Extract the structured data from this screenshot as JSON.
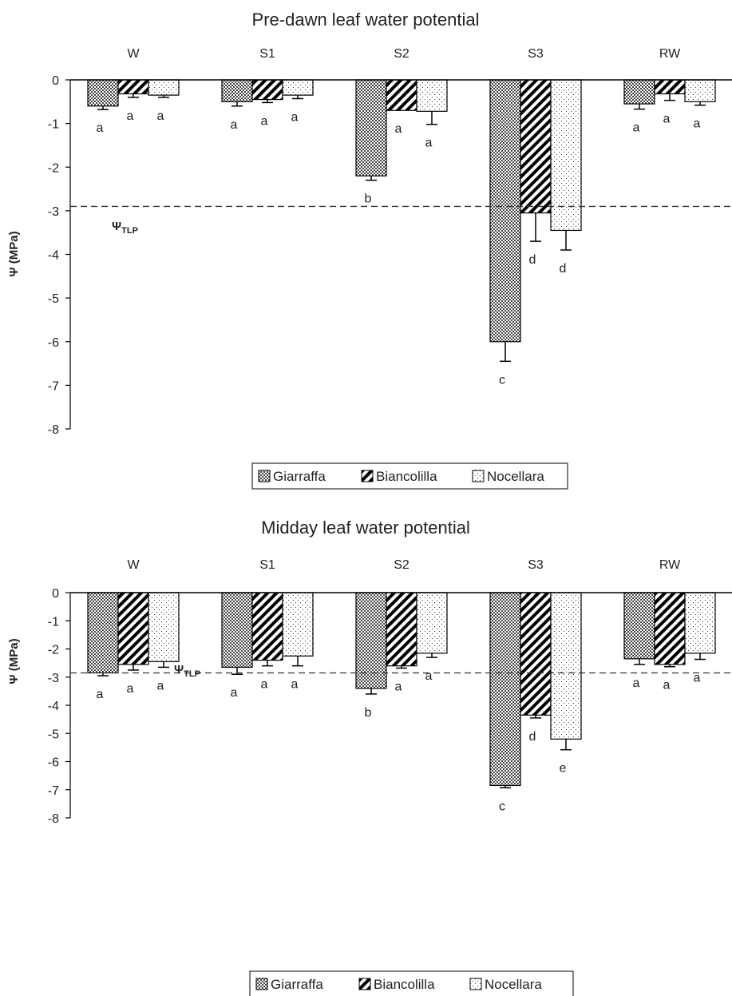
{
  "chart_data": [
    {
      "type": "bar",
      "title": "Pre-dawn leaf water potential",
      "ylabel": "Ψ (MPa)",
      "ylim": [
        -8,
        0
      ],
      "yticks": [
        0,
        -1,
        -2,
        -3,
        -4,
        -5,
        -6,
        -7,
        -8
      ],
      "categories": [
        "W",
        "S1",
        "S2",
        "S3",
        "RW"
      ],
      "series": [
        {
          "name": "Giarraffa",
          "values": [
            -0.6,
            -0.5,
            -2.2,
            -6.0,
            -0.55
          ],
          "errors": [
            0.08,
            0.1,
            0.1,
            0.45,
            0.12
          ],
          "letters": [
            "a",
            "a",
            "b",
            "c",
            "a"
          ]
        },
        {
          "name": "Biancolilla",
          "values": [
            -0.32,
            -0.45,
            -0.7,
            -3.05,
            -0.32
          ],
          "errors": [
            0.08,
            0.07,
            0.0,
            0.65,
            0.15
          ],
          "letters": [
            "a",
            "a",
            "a",
            "d",
            "a"
          ]
        },
        {
          "name": "Nocellara",
          "values": [
            -0.35,
            -0.35,
            -0.72,
            -3.45,
            -0.5
          ],
          "errors": [
            0.05,
            0.08,
            0.3,
            0.45,
            0.08
          ],
          "letters": [
            "a",
            "a",
            "a",
            "d",
            "a"
          ]
        }
      ],
      "threshold": {
        "value": -2.9,
        "label": "Ψ",
        "sublabel": "TLP"
      },
      "legend_position": "bottom-center"
    },
    {
      "type": "bar",
      "title": "Midday leaf water potential",
      "ylabel": "Ψ (MPa)",
      "ylim": [
        -8,
        0
      ],
      "yticks": [
        0,
        -1,
        -2,
        -3,
        -4,
        -5,
        -6,
        -7,
        -8
      ],
      "categories": [
        "W",
        "S1",
        "S2",
        "S3",
        "RW"
      ],
      "series": [
        {
          "name": "Giarraffa",
          "values": [
            -2.85,
            -2.65,
            -3.4,
            -6.85,
            -2.35
          ],
          "errors": [
            0.1,
            0.25,
            0.2,
            0.08,
            0.2
          ],
          "letters": [
            "a",
            "a",
            "b",
            "c",
            "a"
          ]
        },
        {
          "name": "Biancolilla",
          "values": [
            -2.55,
            -2.4,
            -2.6,
            -4.35,
            -2.55
          ],
          "errors": [
            0.2,
            0.2,
            0.08,
            0.1,
            0.08
          ],
          "letters": [
            "a",
            "a",
            "a",
            "d",
            "a"
          ]
        },
        {
          "name": "Nocellara",
          "values": [
            -2.45,
            -2.25,
            -2.15,
            -5.2,
            -2.15
          ],
          "errors": [
            0.2,
            0.35,
            0.15,
            0.38,
            0.22
          ],
          "letters": [
            "a",
            "a",
            "a",
            "e",
            "a"
          ]
        }
      ],
      "threshold": {
        "value": -2.85,
        "label": "Ψ",
        "sublabel": "TLP"
      },
      "legend_position": "bottom-center"
    }
  ]
}
